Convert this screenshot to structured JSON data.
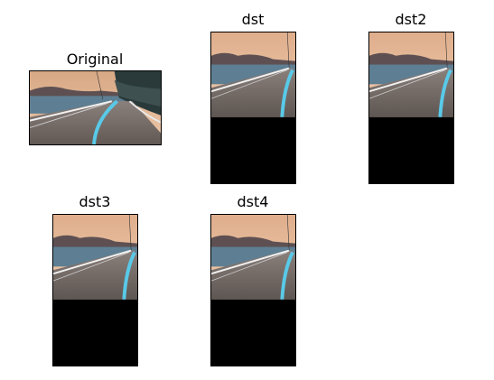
{
  "figure": {
    "panels": [
      {
        "id": "original",
        "title": "Original"
      },
      {
        "id": "dst",
        "title": "dst"
      },
      {
        "id": "dst2",
        "title": "dst2"
      },
      {
        "id": "dst3",
        "title": "dst3"
      },
      {
        "id": "dst4",
        "title": "dst4"
      }
    ]
  },
  "colors": {
    "sky": "#e6b896",
    "road": "#6e6560",
    "water": "#5e7f93",
    "hills": "#5e5052",
    "lane_line": "#59c9e8",
    "edge_line": "#f2f2f2",
    "black_area": "#000000",
    "trees": "#2a3a3a"
  }
}
